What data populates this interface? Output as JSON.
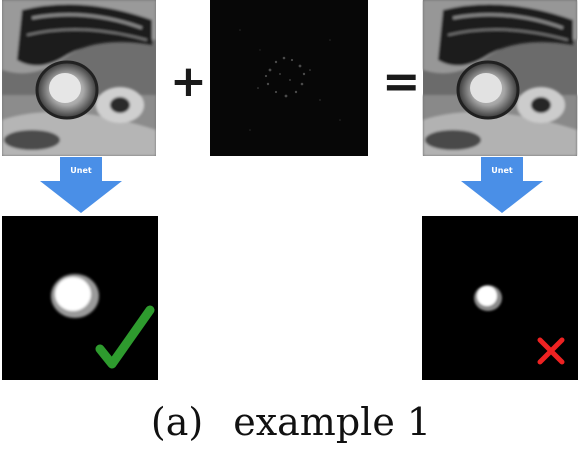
{
  "figure": {
    "operator_plus": "+",
    "operator_equals": "=",
    "arrow_label_left": "Unet",
    "arrow_label_right": "Unet",
    "caption_tag": "(a)",
    "caption_text": "example 1",
    "colors": {
      "arrow_blue": "#4a8fe7",
      "check_green": "#2e9b2e",
      "cross_red": "#ee2222",
      "mask_background": "#000000"
    },
    "icons": {
      "correct": "check-mark-icon",
      "incorrect": "cross-mark-icon"
    }
  }
}
